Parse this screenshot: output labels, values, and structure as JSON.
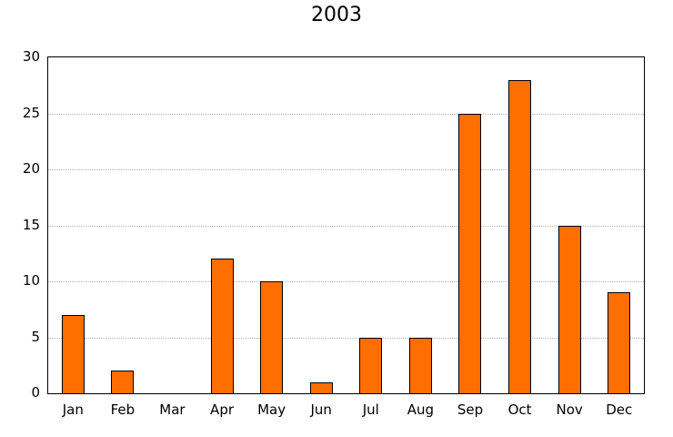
{
  "chart_data": {
    "type": "bar",
    "title": "2003",
    "categories": [
      "Jan",
      "Feb",
      "Mar",
      "Apr",
      "May",
      "Jun",
      "Jul",
      "Aug",
      "Sep",
      "Oct",
      "Nov",
      "Dec"
    ],
    "values": [
      7,
      2,
      0,
      12,
      10,
      1,
      5,
      5,
      25,
      28,
      15,
      9
    ],
    "xlabel": "",
    "ylabel": "",
    "ylim": [
      0,
      30
    ],
    "yticks": [
      0,
      5,
      10,
      15,
      20,
      25,
      30
    ],
    "grid": "horizontal-dotted",
    "legend": "none",
    "bar_color": "#ff6e00",
    "bar_edge_color": "#000000",
    "gridline_color": "#b0b0b0"
  }
}
